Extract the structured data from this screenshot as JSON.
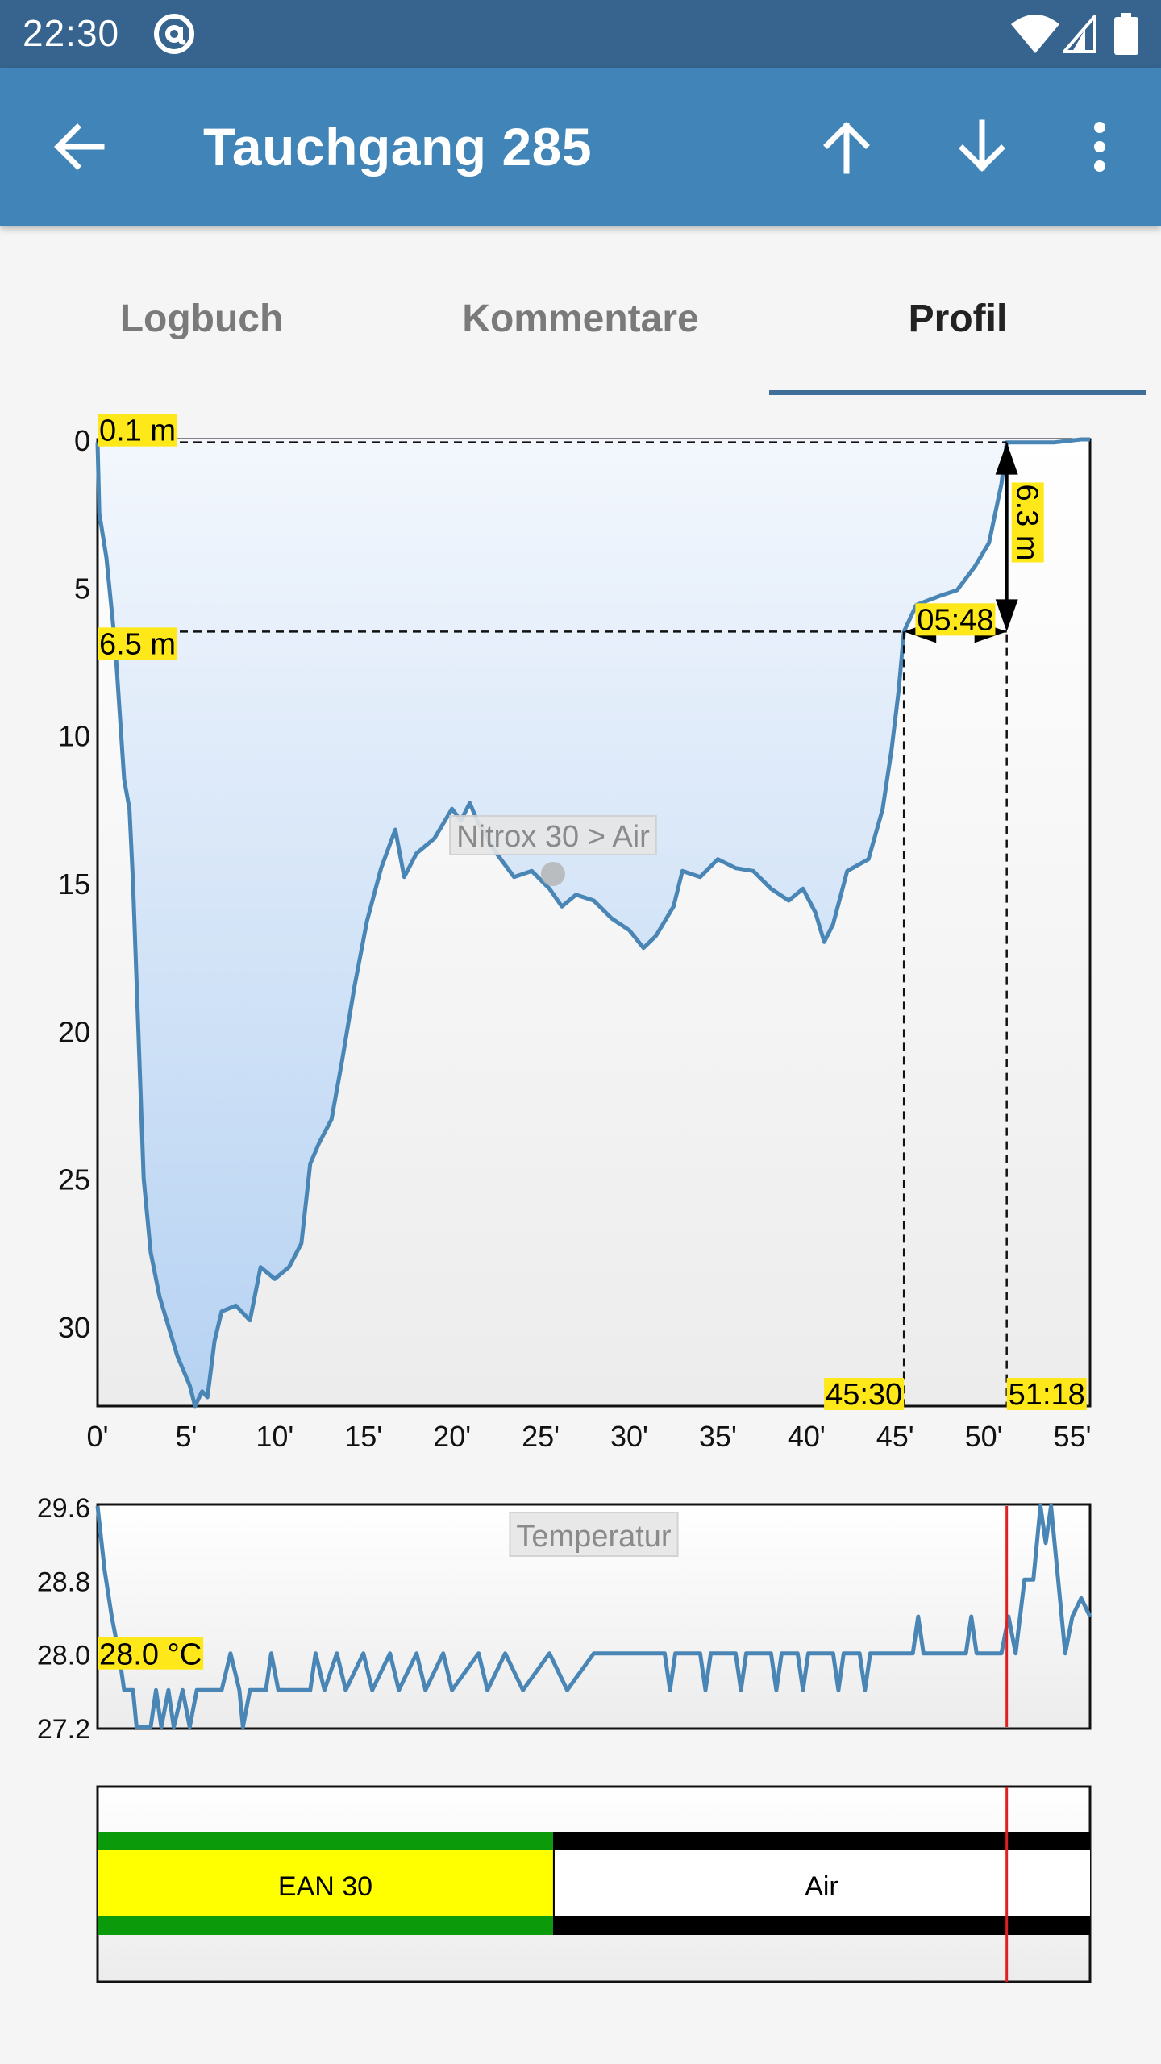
{
  "status_bar": {
    "time": "22:30",
    "icons": [
      "at-sign-icon",
      "wifi-icon",
      "signal-icon",
      "battery-icon"
    ]
  },
  "app_bar": {
    "title": "Tauchgang 285",
    "icons": [
      "back-arrow-icon",
      "arrow-up-icon",
      "arrow-down-icon",
      "more-vert-icon"
    ],
    "color": "#4184b8"
  },
  "tabs": [
    {
      "label": "Logbuch",
      "active": false
    },
    {
      "label": "Kommentare",
      "active": false
    },
    {
      "label": "Profil",
      "active": true
    }
  ],
  "colors": {
    "series": "#4a86b5",
    "highlight": "#ffe81a",
    "cursor": "#e02020",
    "gas_ean": "#ffff00",
    "gas_ean_border": "#0a9a0a"
  },
  "chart_data": [
    {
      "type": "area",
      "name": "depth-profile",
      "x_unit": "min",
      "y_unit": "m",
      "x_ticks": [
        "0'",
        "5'",
        "10'",
        "15'",
        "20'",
        "25'",
        "30'",
        "35'",
        "40'",
        "45'",
        "50'",
        "55'"
      ],
      "y_ticks": [
        "0",
        "5",
        "10",
        "15",
        "20",
        "25",
        "30"
      ],
      "xlim": [
        0,
        56
      ],
      "ylim": [
        0,
        32.7
      ],
      "y_inverted": true,
      "points": [
        [
          0,
          0.1
        ],
        [
          0.1,
          2.5
        ],
        [
          0.5,
          4.0
        ],
        [
          1.0,
          7.0
        ],
        [
          1.5,
          11.5
        ],
        [
          1.8,
          12.5
        ],
        [
          2.0,
          15.0
        ],
        [
          2.3,
          20.0
        ],
        [
          2.6,
          25.0
        ],
        [
          3.0,
          27.5
        ],
        [
          3.5,
          29.0
        ],
        [
          4.0,
          30.0
        ],
        [
          4.5,
          31.0
        ],
        [
          5.2,
          32.0
        ],
        [
          5.5,
          32.7
        ],
        [
          5.9,
          32.2
        ],
        [
          6.2,
          32.4
        ],
        [
          6.6,
          30.5
        ],
        [
          7.0,
          29.5
        ],
        [
          7.8,
          29.3
        ],
        [
          8.6,
          29.8
        ],
        [
          9.2,
          28.0
        ],
        [
          10.0,
          28.4
        ],
        [
          10.8,
          28.0
        ],
        [
          11.5,
          27.2
        ],
        [
          12.0,
          24.5
        ],
        [
          12.5,
          23.8
        ],
        [
          13.2,
          23.0
        ],
        [
          13.8,
          21.0
        ],
        [
          14.5,
          18.5
        ],
        [
          15.2,
          16.3
        ],
        [
          16.0,
          14.5
        ],
        [
          16.8,
          13.2
        ],
        [
          17.3,
          14.8
        ],
        [
          18.0,
          14.0
        ],
        [
          19.0,
          13.5
        ],
        [
          20.0,
          12.5
        ],
        [
          20.5,
          12.9
        ],
        [
          21.0,
          12.3
        ],
        [
          21.5,
          13.0
        ],
        [
          22.5,
          14.0
        ],
        [
          23.5,
          14.8
        ],
        [
          24.5,
          14.6
        ],
        [
          25.5,
          15.2
        ],
        [
          26.2,
          15.8
        ],
        [
          27.0,
          15.4
        ],
        [
          28.0,
          15.6
        ],
        [
          29.0,
          16.2
        ],
        [
          30.0,
          16.6
        ],
        [
          30.8,
          17.2
        ],
        [
          31.5,
          16.8
        ],
        [
          32.5,
          15.8
        ],
        [
          33.0,
          14.6
        ],
        [
          34.0,
          14.8
        ],
        [
          35.0,
          14.2
        ],
        [
          36.0,
          14.5
        ],
        [
          37.0,
          14.6
        ],
        [
          38.0,
          15.2
        ],
        [
          39.0,
          15.6
        ],
        [
          39.8,
          15.2
        ],
        [
          40.5,
          16.0
        ],
        [
          41.0,
          17.0
        ],
        [
          41.5,
          16.4
        ],
        [
          42.3,
          14.6
        ],
        [
          43.5,
          14.2
        ],
        [
          44.3,
          12.5
        ],
        [
          44.8,
          10.5
        ],
        [
          45.2,
          8.5
        ],
        [
          45.5,
          6.5
        ],
        [
          46.2,
          5.6
        ],
        [
          47.5,
          5.3
        ],
        [
          48.5,
          5.1
        ],
        [
          49.5,
          4.3
        ],
        [
          50.3,
          3.5
        ],
        [
          51.0,
          1.5
        ],
        [
          51.3,
          0.1
        ],
        [
          52.5,
          0.1
        ],
        [
          54.0,
          0.1
        ],
        [
          55.5,
          0.0
        ],
        [
          56.0,
          0.0
        ]
      ],
      "annotations": {
        "max_level_label": "0.1 m",
        "ascent_start_depth_label": "6.5 m",
        "ascent_height_label": "6.3 m",
        "ascent_duration_label": "05:48",
        "ascent_start_time_label": "45:30",
        "ascent_end_time_label": "51:18",
        "gas_switch_label": "Nitrox 30 > Air",
        "ascent_start_time_min": 45.5,
        "ascent_end_time_min": 51.3,
        "ascent_start_depth_m": 6.5,
        "ascent_end_depth_m": 0.1,
        "gas_switch_time_min": 25.7,
        "gas_switch_depth_m": 14.7
      }
    },
    {
      "type": "line",
      "name": "temperature",
      "title": "Temperatur",
      "y_unit": "°C",
      "y_ticks": [
        "29.6",
        "28.8",
        "28.0",
        "27.2"
      ],
      "xlim": [
        0,
        56
      ],
      "ylim": [
        27.2,
        29.6
      ],
      "current_value_label": "28.0 °C",
      "cursor_time_min": 51.3,
      "points": [
        [
          0,
          29.6
        ],
        [
          0.4,
          28.9
        ],
        [
          0.8,
          28.4
        ],
        [
          1.2,
          28.0
        ],
        [
          1.5,
          27.6
        ],
        [
          2.0,
          27.6
        ],
        [
          2.2,
          27.2
        ],
        [
          3.0,
          27.2
        ],
        [
          3.3,
          27.6
        ],
        [
          3.6,
          27.2
        ],
        [
          4.0,
          27.6
        ],
        [
          4.3,
          27.2
        ],
        [
          4.8,
          27.6
        ],
        [
          5.2,
          27.2
        ],
        [
          5.6,
          27.6
        ],
        [
          6.0,
          27.6
        ],
        [
          7.0,
          27.6
        ],
        [
          7.5,
          28.0
        ],
        [
          8.0,
          27.6
        ],
        [
          8.2,
          27.2
        ],
        [
          8.6,
          27.6
        ],
        [
          9.5,
          27.6
        ],
        [
          9.8,
          28.0
        ],
        [
          10.2,
          27.6
        ],
        [
          12.0,
          27.6
        ],
        [
          12.3,
          28.0
        ],
        [
          12.8,
          27.6
        ],
        [
          13.5,
          28.0
        ],
        [
          14.0,
          27.6
        ],
        [
          15.0,
          28.0
        ],
        [
          15.5,
          27.6
        ],
        [
          16.5,
          28.0
        ],
        [
          17.0,
          27.6
        ],
        [
          18.0,
          28.0
        ],
        [
          18.5,
          27.6
        ],
        [
          19.5,
          28.0
        ],
        [
          20.0,
          27.6
        ],
        [
          21.5,
          28.0
        ],
        [
          22.0,
          27.6
        ],
        [
          23.0,
          28.0
        ],
        [
          24.0,
          27.6
        ],
        [
          25.5,
          28.0
        ],
        [
          26.5,
          27.6
        ],
        [
          28.0,
          28.0
        ],
        [
          29.0,
          28.0
        ],
        [
          30.0,
          28.0
        ],
        [
          32.0,
          28.0
        ],
        [
          32.3,
          27.6
        ],
        [
          32.6,
          28.0
        ],
        [
          34.0,
          28.0
        ],
        [
          34.3,
          27.6
        ],
        [
          34.6,
          28.0
        ],
        [
          36.0,
          28.0
        ],
        [
          36.3,
          27.6
        ],
        [
          36.6,
          28.0
        ],
        [
          38.0,
          28.0
        ],
        [
          38.3,
          27.6
        ],
        [
          38.6,
          28.0
        ],
        [
          39.5,
          28.0
        ],
        [
          39.8,
          27.6
        ],
        [
          40.1,
          28.0
        ],
        [
          41.5,
          28.0
        ],
        [
          41.8,
          27.6
        ],
        [
          42.1,
          28.0
        ],
        [
          43.0,
          28.0
        ],
        [
          43.3,
          27.6
        ],
        [
          43.6,
          28.0
        ],
        [
          46.0,
          28.0
        ],
        [
          46.3,
          28.4
        ],
        [
          46.6,
          28.0
        ],
        [
          49.0,
          28.0
        ],
        [
          49.3,
          28.4
        ],
        [
          49.6,
          28.0
        ],
        [
          51.0,
          28.0
        ],
        [
          51.4,
          28.4
        ],
        [
          51.8,
          28.0
        ],
        [
          52.3,
          28.8
        ],
        [
          52.8,
          28.8
        ],
        [
          53.2,
          29.6
        ],
        [
          53.5,
          29.2
        ],
        [
          53.8,
          29.6
        ],
        [
          54.2,
          28.8
        ],
        [
          54.6,
          28.0
        ],
        [
          55.0,
          28.4
        ],
        [
          55.5,
          28.6
        ],
        [
          56.0,
          28.4
        ]
      ]
    },
    {
      "type": "bar",
      "name": "gas-mixtures",
      "xlim": [
        0,
        56
      ],
      "cursor_time_min": 51.3,
      "segments": [
        {
          "label": "EAN 30",
          "start_min": 0,
          "end_min": 25.7
        },
        {
          "label": "Air",
          "start_min": 25.7,
          "end_min": 56
        }
      ]
    }
  ]
}
